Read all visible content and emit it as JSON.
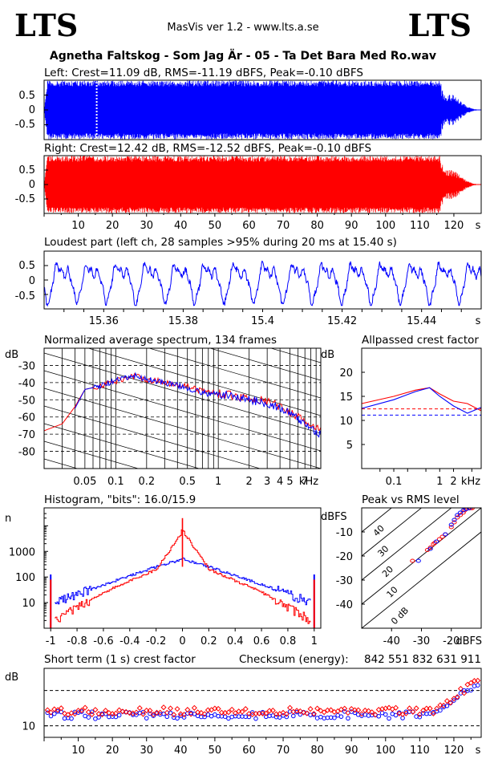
{
  "header": {
    "logo_left": "LTS",
    "logo_right": "LTS",
    "app_title": "MasVis ver 1.2 - www.lts.a.se",
    "file_title": "Agnetha Faltskog - Som Jag Är - 05 - Ta Det Bara Med Ro.wav"
  },
  "colors": {
    "left": "#0000ff",
    "right": "#ff0000",
    "grid": "#000000"
  },
  "chart_data": [
    {
      "id": "left-waveform",
      "type": "area",
      "title": "Left: Crest=11.09 dB, RMS=-11.19 dBFS, Peak=-0.10 dBFS",
      "y_ticks": [
        "0.5",
        "0",
        "-0.5"
      ],
      "ylim": [
        -1,
        1
      ],
      "xlim": [
        0,
        128
      ],
      "marker_time_s": 15.4,
      "envelope": {
        "t": [
          0,
          1,
          2,
          110,
          116,
          117,
          120,
          122,
          124,
          126,
          128
        ],
        "amp": [
          0,
          0.99,
          0.99,
          0.99,
          0.99,
          0.55,
          0.5,
          0.3,
          0.12,
          0.03,
          0
        ]
      }
    },
    {
      "id": "right-waveform",
      "type": "area",
      "title": "Right: Crest=12.42 dB, RMS=-12.52 dBFS, Peak=-0.10 dBFS",
      "y_ticks": [
        "0.5",
        "0",
        "-0.5"
      ],
      "x_ticks": [
        "10",
        "20",
        "30",
        "40",
        "50",
        "60",
        "70",
        "80",
        "90",
        "100",
        "110",
        "120"
      ],
      "x_unit": "s",
      "ylim": [
        -1,
        1
      ],
      "xlim": [
        0,
        128
      ],
      "envelope": {
        "t": [
          0,
          1,
          2,
          110,
          116,
          117,
          120,
          122,
          124,
          126,
          128
        ],
        "amp": [
          0,
          0.99,
          0.99,
          0.99,
          0.99,
          0.55,
          0.5,
          0.3,
          0.12,
          0.03,
          0
        ]
      }
    },
    {
      "id": "loudest-part",
      "type": "line",
      "title": "Loudest part (left  ch, 28 samples >95% during 20 ms at 15.40 s)",
      "y_ticks": [
        "0.5",
        "0",
        "-0.5"
      ],
      "x_ticks": [
        "15.36",
        "15.38",
        "15.4",
        "15.42",
        "15.44"
      ],
      "x_unit": "s",
      "xlim": [
        15.345,
        15.455
      ],
      "ylim": [
        -1,
        1
      ],
      "cycle_s": 0.0074
    },
    {
      "id": "average-spectrum",
      "type": "line",
      "title": "Normalized average spectrum, 134 frames",
      "ylabel": "dB",
      "y_ticks": [
        "-30",
        "-40",
        "-50",
        "-60",
        "-70",
        "-80"
      ],
      "x_ticks": [
        "0.05",
        "0.1",
        "0.2",
        "0.5",
        "1",
        "2",
        "3",
        "4",
        "5",
        "7"
      ],
      "x_unit": "kHz",
      "ylim": [
        -90,
        -20
      ],
      "xlim_khz": [
        0.02,
        10
      ],
      "series": [
        {
          "color": "#ff0000",
          "x_khz": [
            0.02,
            0.03,
            0.04,
            0.05,
            0.07,
            0.1,
            0.15,
            0.2,
            0.3,
            0.5,
            0.7,
            1,
            1.5,
            2,
            3,
            4,
            5,
            7,
            10
          ],
          "db": [
            -68,
            -64,
            -54,
            -44,
            -42,
            -39,
            -36,
            -38,
            -40,
            -42,
            -45,
            -46,
            -48,
            -49,
            -51,
            -54,
            -57,
            -63,
            -68
          ]
        },
        {
          "color": "#0000ff",
          "x_khz": [
            0.04,
            0.05,
            0.07,
            0.1,
            0.15,
            0.2,
            0.3,
            0.5,
            0.7,
            1,
            1.5,
            2,
            3,
            4,
            5,
            7,
            10
          ],
          "db": [
            -55,
            -44,
            -42,
            -39,
            -36,
            -38,
            -40,
            -43,
            -46,
            -47,
            -48,
            -50,
            -52,
            -55,
            -58,
            -64,
            -70
          ]
        }
      ]
    },
    {
      "id": "allpassed-crest",
      "type": "line",
      "title": "Allpassed crest factor",
      "ylabel": "dB",
      "y_ticks": [
        "20",
        "15",
        "10",
        "5"
      ],
      "x_ticks": [
        "0.1",
        "1",
        "2"
      ],
      "x_unit": "kHz",
      "ylim": [
        0,
        25
      ],
      "ref_lines_db": [
        12.4,
        11.1
      ],
      "series": [
        {
          "color": "#ff0000",
          "x_khz": [
            0.02,
            0.1,
            0.3,
            0.6,
            1,
            2,
            4,
            8
          ],
          "db": [
            13.5,
            15,
            16.3,
            16.8,
            15.5,
            14,
            13.5,
            12
          ]
        },
        {
          "color": "#0000ff",
          "x_khz": [
            0.02,
            0.1,
            0.3,
            0.6,
            1,
            2,
            4,
            8
          ],
          "db": [
            12.5,
            14.3,
            16,
            16.8,
            15,
            13,
            11.5,
            12.7
          ]
        }
      ]
    },
    {
      "id": "histogram",
      "type": "line",
      "title": "Histogram, \"bits\": 16.0/15.9",
      "ylabel": "n",
      "y_ticks": [
        "1000",
        "100",
        "10"
      ],
      "x_ticks": [
        "-1",
        "-0.8",
        "-0.6",
        "-0.4",
        "-0.2",
        "0",
        "0.2",
        "0.4",
        "0.6",
        "0.8",
        "1"
      ],
      "xlim": [
        -1.05,
        1.05
      ],
      "series": [
        {
          "color": "#0000ff",
          "x": [
            -1,
            -0.97,
            -0.6,
            -0.2,
            0,
            0.2,
            0.6,
            0.97,
            1
          ],
          "log10_n": [
            2.1,
            1.0,
            1.7,
            2.4,
            2.7,
            2.4,
            1.7,
            1.0,
            2.1
          ]
        },
        {
          "color": "#ff0000",
          "x": [
            -1,
            -0.97,
            -0.6,
            -0.2,
            0,
            0.2,
            0.6,
            0.97,
            1
          ],
          "log10_n": [
            1.9,
            0.3,
            1.4,
            2.3,
            3.8,
            2.3,
            1.4,
            0.3,
            1.9
          ]
        }
      ]
    },
    {
      "id": "peak-vs-rms",
      "type": "scatter",
      "title": "Peak vs RMS level",
      "ylabel": "dBFS",
      "xlabel": "dBFS",
      "y_ticks": [
        "-10",
        "-20",
        "-30",
        "-40"
      ],
      "x_ticks": [
        "-40",
        "-30",
        "-20"
      ],
      "diagonal_labels": [
        "40",
        "30",
        "20",
        "10",
        "0 dB"
      ],
      "series": [
        {
          "color": "#ff0000",
          "rms": [
            -33,
            -28,
            -27,
            -26,
            -25.5,
            -24,
            -23,
            -22,
            -20,
            -19,
            -18,
            -17,
            -16,
            -15.5,
            -15,
            -14,
            -13.5,
            -13
          ],
          "peak": [
            -22,
            -17.5,
            -16.5,
            -15,
            -14.5,
            -13,
            -12,
            -11,
            -8,
            -6,
            -4,
            -3,
            -2,
            -1,
            -0.5,
            -0.2,
            -0.1,
            -0.1
          ]
        },
        {
          "color": "#0000ff",
          "rms": [
            -31,
            -27,
            -25,
            -22,
            -20,
            -19,
            -18,
            -17,
            -16,
            -15,
            -14
          ],
          "peak": [
            -22,
            -17,
            -14,
            -11,
            -7,
            -5,
            -3,
            -2,
            -1,
            -0.5,
            -0.1
          ]
        }
      ]
    },
    {
      "id": "short-term-crest",
      "type": "scatter",
      "title": "Short term (1 s) crest factor",
      "checksum_label": "Checksum (energy):",
      "checksum_value": "842 551 832 631 911",
      "ylabel": "dB",
      "y_ticks": [
        "10"
      ],
      "x_ticks": [
        "10",
        "20",
        "30",
        "40",
        "50",
        "60",
        "70",
        "80",
        "90",
        "100",
        "110",
        "120"
      ],
      "x_unit": "s",
      "xlim": [
        0,
        128
      ],
      "ref_lines_db": [
        12.4,
        11.1
      ],
      "typical_db": {
        "left": 11.3,
        "right": 11.8,
        "end_rise_s": 114,
        "end_db": 15
      }
    }
  ]
}
